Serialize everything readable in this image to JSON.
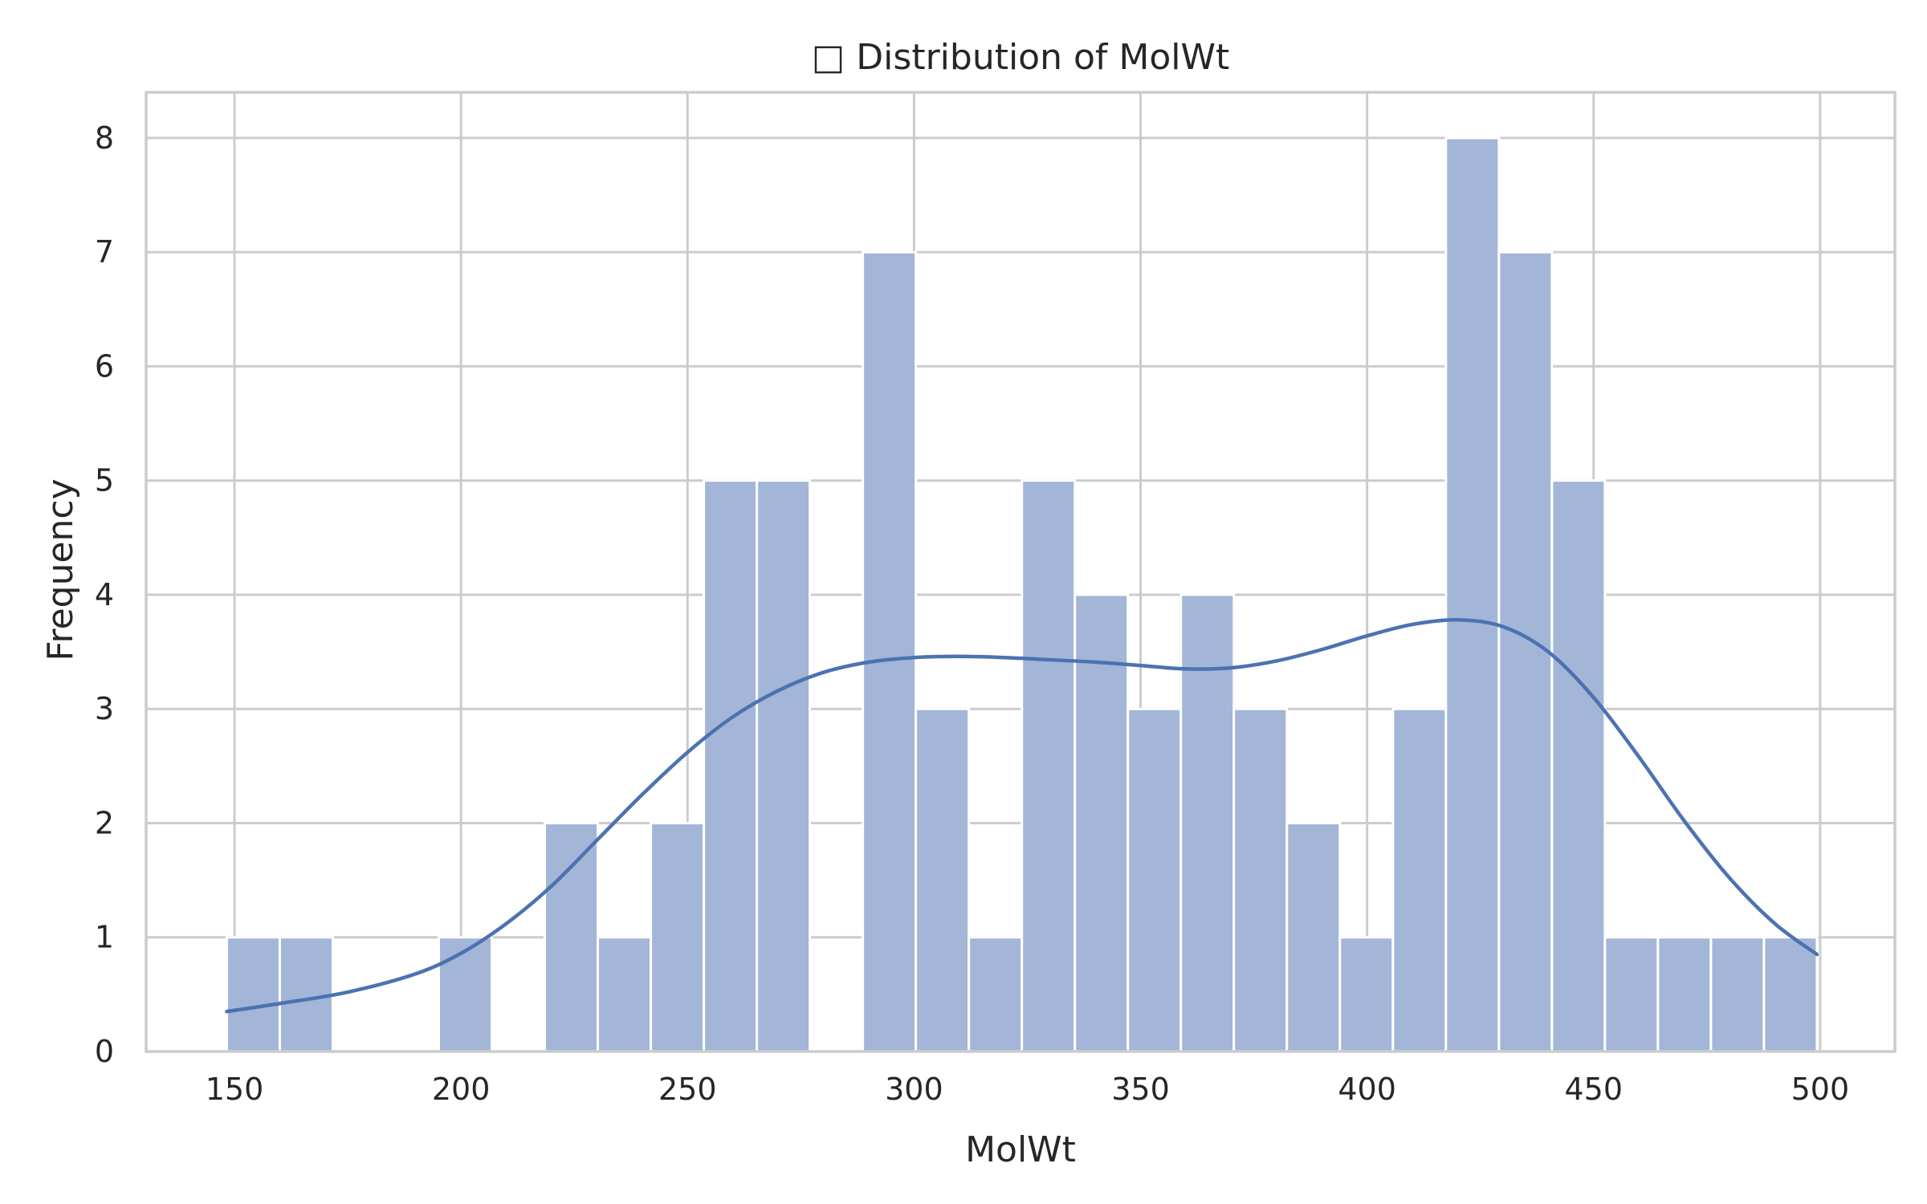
{
  "chart_data": {
    "type": "bar",
    "title": "□ Distribution of MolWt",
    "xlabel": "MolWt",
    "ylabel": "Frequency",
    "xlim": [
      130.5,
      516.5
    ],
    "ylim": [
      0,
      8.4
    ],
    "xticks": [
      150,
      200,
      250,
      300,
      350,
      400,
      450,
      500
    ],
    "yticks": [
      0,
      1,
      2,
      3,
      4,
      5,
      6,
      7,
      8
    ],
    "grid": true,
    "bin_width": 11.7,
    "bin_start": 148.3,
    "bins": [
      {
        "x_start": 148.3,
        "x_end": 160.0,
        "count": 1
      },
      {
        "x_start": 160.0,
        "x_end": 171.7,
        "count": 1
      },
      {
        "x_start": 171.7,
        "x_end": 183.4,
        "count": 0
      },
      {
        "x_start": 183.4,
        "x_end": 195.1,
        "count": 0
      },
      {
        "x_start": 195.1,
        "x_end": 206.8,
        "count": 1
      },
      {
        "x_start": 206.8,
        "x_end": 218.5,
        "count": 0
      },
      {
        "x_start": 218.5,
        "x_end": 230.2,
        "count": 2
      },
      {
        "x_start": 230.2,
        "x_end": 241.9,
        "count": 1
      },
      {
        "x_start": 241.9,
        "x_end": 253.6,
        "count": 2
      },
      {
        "x_start": 253.6,
        "x_end": 265.3,
        "count": 5
      },
      {
        "x_start": 265.3,
        "x_end": 277.0,
        "count": 5
      },
      {
        "x_start": 277.0,
        "x_end": 288.7,
        "count": 0
      },
      {
        "x_start": 288.7,
        "x_end": 300.4,
        "count": 7
      },
      {
        "x_start": 300.4,
        "x_end": 312.1,
        "count": 3
      },
      {
        "x_start": 312.1,
        "x_end": 323.8,
        "count": 1
      },
      {
        "x_start": 323.8,
        "x_end": 335.5,
        "count": 5
      },
      {
        "x_start": 335.5,
        "x_end": 347.2,
        "count": 4
      },
      {
        "x_start": 347.2,
        "x_end": 358.9,
        "count": 3
      },
      {
        "x_start": 358.9,
        "x_end": 370.6,
        "count": 4
      },
      {
        "x_start": 370.6,
        "x_end": 382.3,
        "count": 3
      },
      {
        "x_start": 382.3,
        "x_end": 394.0,
        "count": 2
      },
      {
        "x_start": 394.0,
        "x_end": 405.7,
        "count": 1
      },
      {
        "x_start": 405.7,
        "x_end": 417.4,
        "count": 3
      },
      {
        "x_start": 417.4,
        "x_end": 429.1,
        "count": 8
      },
      {
        "x_start": 429.1,
        "x_end": 440.8,
        "count": 7
      },
      {
        "x_start": 440.8,
        "x_end": 452.5,
        "count": 5
      },
      {
        "x_start": 452.5,
        "x_end": 464.2,
        "count": 1
      },
      {
        "x_start": 464.2,
        "x_end": 475.9,
        "count": 1
      },
      {
        "x_start": 475.9,
        "x_end": 487.6,
        "count": 1
      },
      {
        "x_start": 487.6,
        "x_end": 499.3,
        "count": 1
      }
    ],
    "kde": {
      "x": [
        148.3,
        160,
        175,
        190,
        200,
        210,
        220,
        230,
        240,
        250,
        260,
        270,
        280,
        290,
        300,
        310,
        320,
        330,
        340,
        350,
        360,
        370,
        380,
        390,
        400,
        410,
        420,
        430,
        440,
        450,
        460,
        470,
        480,
        490,
        499.3
      ],
      "y": [
        0.35,
        0.42,
        0.52,
        0.68,
        0.86,
        1.12,
        1.45,
        1.85,
        2.25,
        2.62,
        2.93,
        3.16,
        3.32,
        3.41,
        3.45,
        3.46,
        3.45,
        3.43,
        3.41,
        3.38,
        3.35,
        3.36,
        3.42,
        3.52,
        3.64,
        3.74,
        3.78,
        3.72,
        3.5,
        3.1,
        2.58,
        2.02,
        1.52,
        1.12,
        0.85
      ]
    },
    "colors": {
      "bar_fill": "#a3b6d8",
      "bar_edge": "#ffffff",
      "kde_line": "#4c72b0",
      "grid": "#cccccc",
      "axes_edge": "#cccccc",
      "text": "#262626"
    }
  }
}
